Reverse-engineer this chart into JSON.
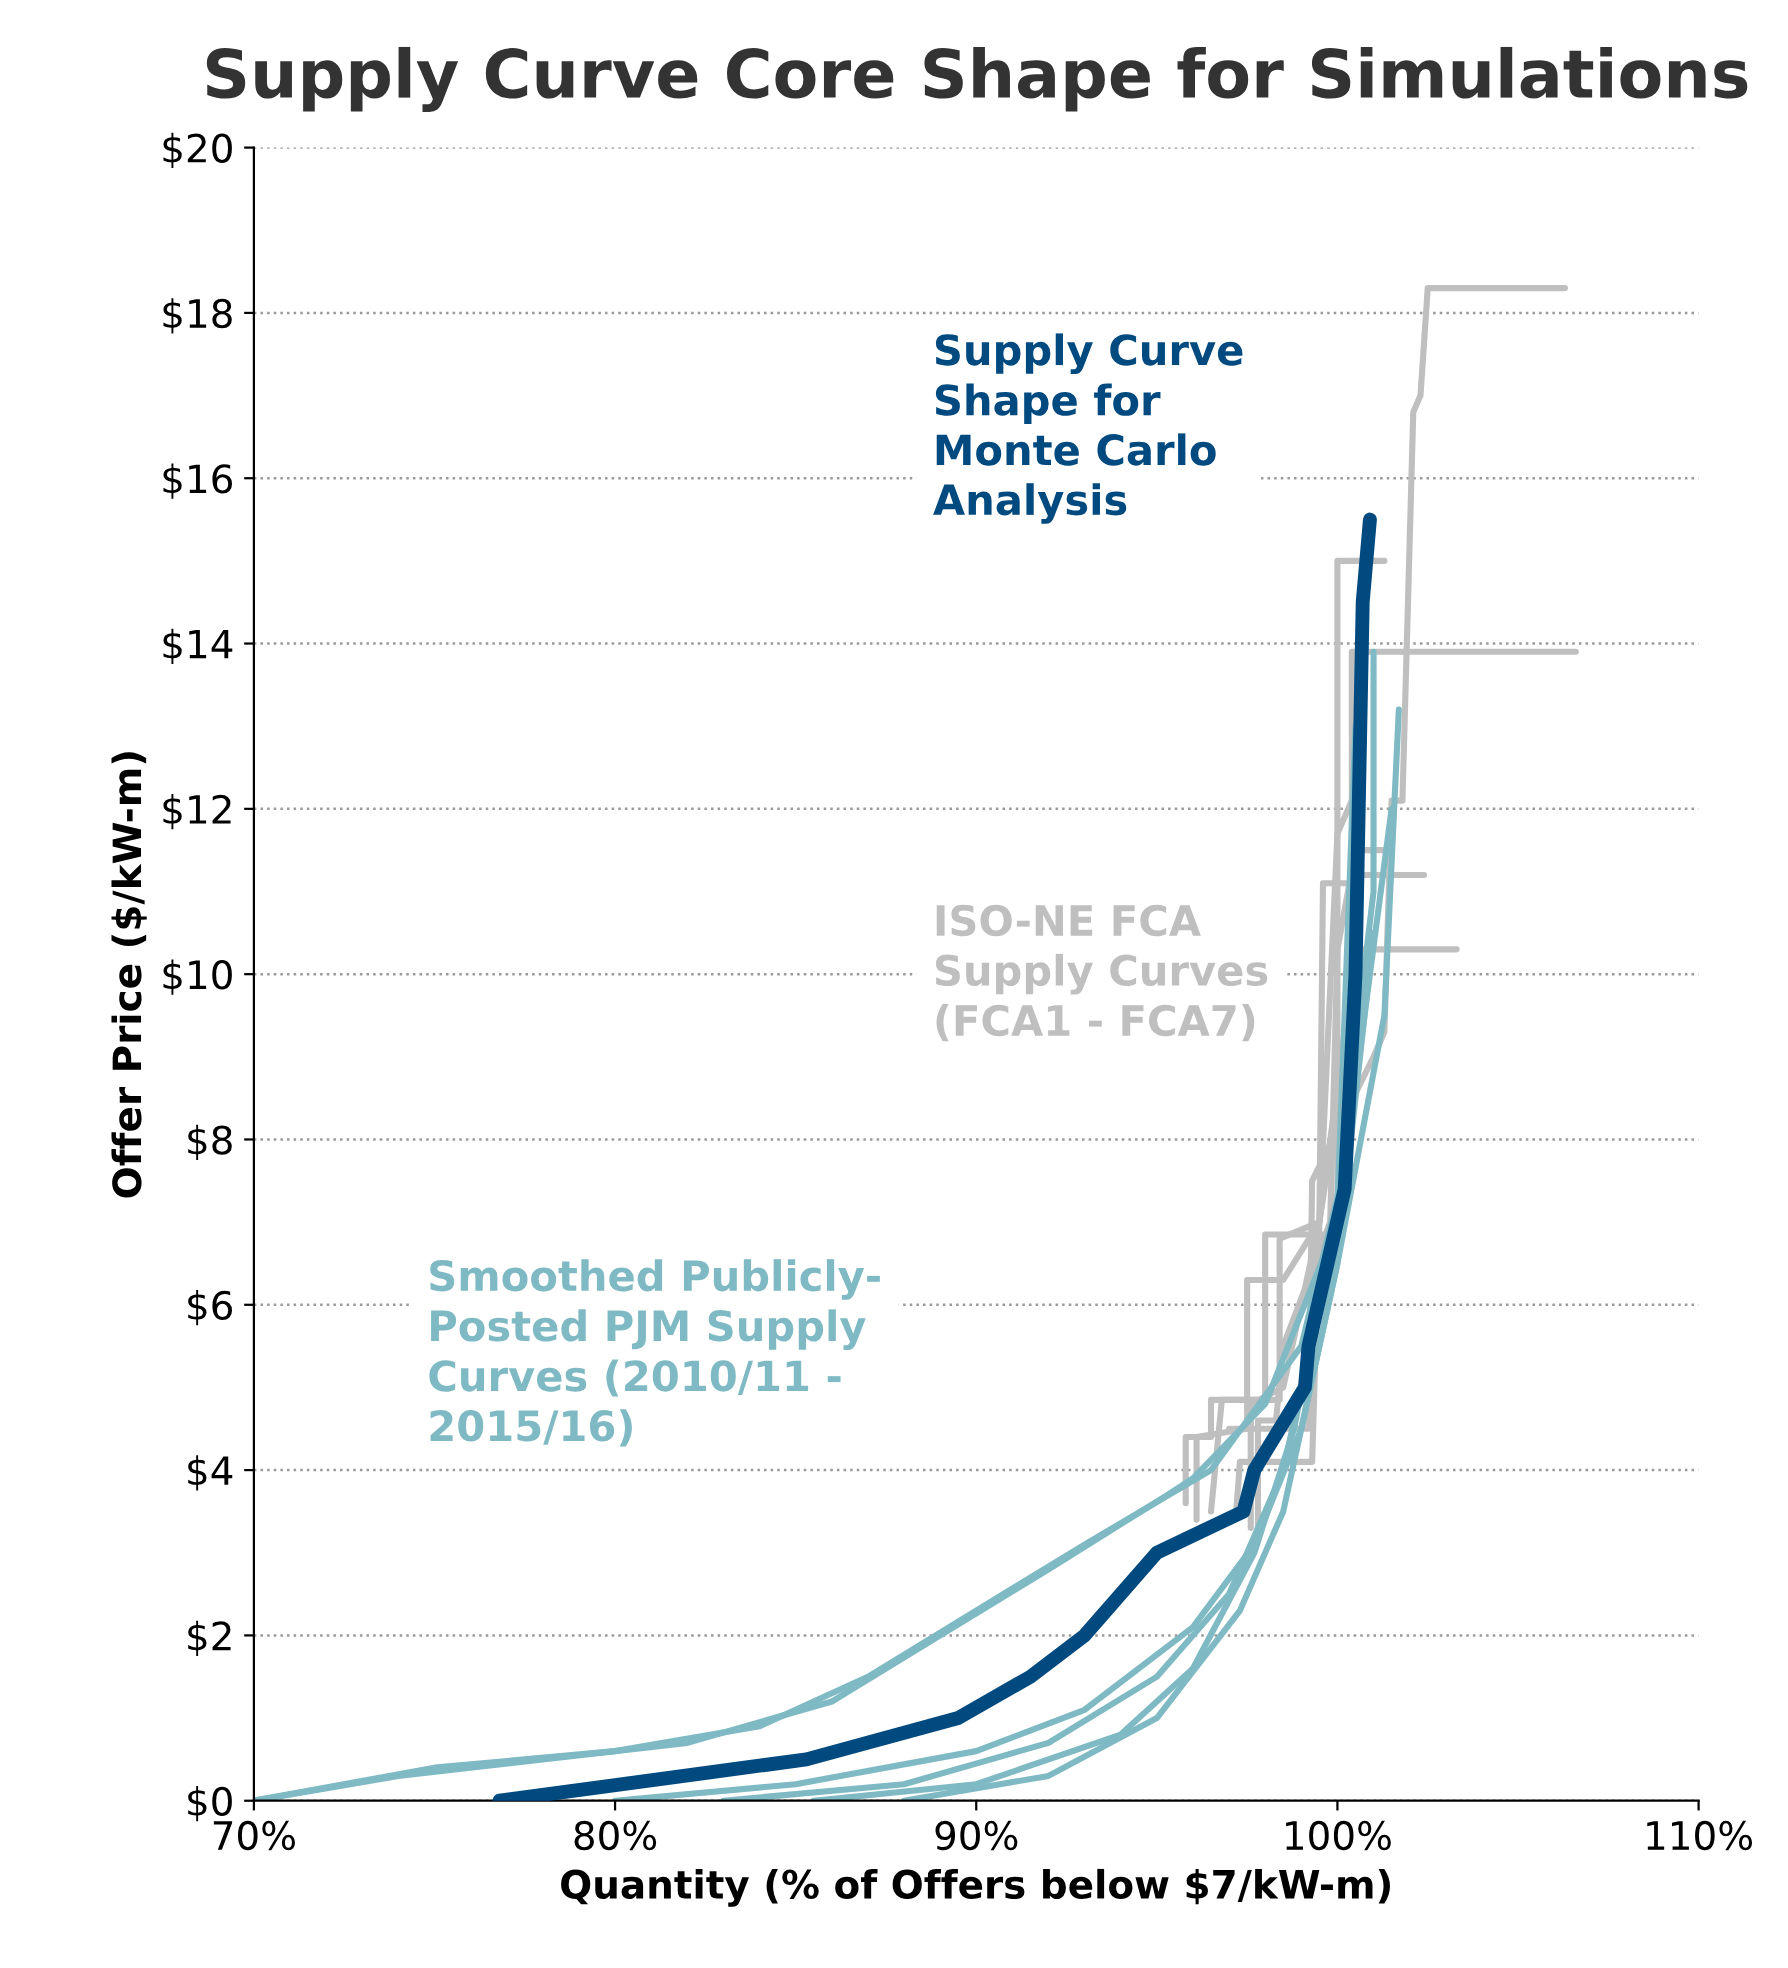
{
  "chart_data": {
    "type": "line",
    "title": "Supply Curve Core Shape for Simulations",
    "xlabel": "Quantity (% of Offers below $7/kW-m)",
    "ylabel": "Offer Price ($/kW-m)",
    "xlim": [
      70,
      110
    ],
    "xticks": [
      {
        "value": 70,
        "label": "70%"
      },
      {
        "value": 80,
        "label": "80%"
      },
      {
        "value": 90,
        "label": "90%"
      },
      {
        "value": 100,
        "label": "100%"
      },
      {
        "value": 110,
        "label": "110%"
      }
    ],
    "ylim": [
      0,
      20
    ],
    "yticks": [
      {
        "value": 0,
        "label": "$0"
      },
      {
        "value": 2,
        "label": "$2"
      },
      {
        "value": 4,
        "label": "$4"
      },
      {
        "value": 6,
        "label": "$6"
      },
      {
        "value": 8,
        "label": "$8"
      },
      {
        "value": 10,
        "label": "$10"
      },
      {
        "value": 12,
        "label": "$12"
      },
      {
        "value": 14,
        "label": "$14"
      },
      {
        "value": 16,
        "label": "$16"
      },
      {
        "value": 18,
        "label": "$18"
      },
      {
        "value": 20,
        "label": "$20"
      }
    ],
    "grid": "y",
    "legend": false,
    "marker": "none",
    "line_style": "solid",
    "series": [
      {
        "name": "ISO-NE FCA\nSupply Curves\n(FCA1 - FCA7)",
        "color": "#bfbfbf",
        "x": [
          95.8,
          95.8,
          96.5,
          96.5,
          98,
          98,
          100,
          100,
          101.3
        ],
        "values": [
          3.6,
          4.4,
          4.4,
          4.85,
          4.85,
          6.85,
          6.85,
          15,
          15
        ]
      },
      {
        "color": "#bfbfbf",
        "x": [
          96.1,
          96.1,
          97.5,
          97.5,
          98.5,
          99.5,
          99.6,
          100.4,
          100.4,
          106.6
        ],
        "values": [
          3.4,
          4.4,
          4.5,
          6.3,
          6.3,
          7,
          11.1,
          11.1,
          13.9,
          13.9
        ]
      },
      {
        "color": "#bfbfbf",
        "x": [
          97.8,
          97.8,
          98.3,
          98.5,
          99.8,
          100,
          100.5,
          101.5
        ],
        "values": [
          3.2,
          4.6,
          4.6,
          5.5,
          7,
          10.3,
          11.5,
          11.5
        ]
      },
      {
        "color": "#bfbfbf",
        "x": [
          96.5,
          96.8,
          98.4,
          98.4,
          99.5,
          100.5,
          103.3
        ],
        "values": [
          3.5,
          4.85,
          4.85,
          6.8,
          7,
          10.3,
          10.3
        ]
      },
      {
        "color": "#bfbfbf",
        "x": [
          97.2,
          97.3,
          99.3,
          99.5,
          100.2,
          100.5,
          102.4
        ],
        "values": [
          3.5,
          4.1,
          4.1,
          7,
          9,
          11.2,
          11.2
        ]
      },
      {
        "color": "#bfbfbf",
        "x": [
          97,
          99.2,
          99.3,
          101,
          101.3,
          101.5,
          101.8,
          102.1,
          102.3,
          102.5,
          106.3
        ],
        "values": [
          4.5,
          4.5,
          7.5,
          9,
          9.3,
          12.1,
          12.1,
          16.8,
          17,
          18.3,
          18.3
        ]
      },
      {
        "color": "#bfbfbf",
        "x": [
          97.6,
          97.6,
          98.5,
          99.5,
          100,
          100.5
        ],
        "values": [
          3.3,
          4.8,
          5,
          7,
          11.7,
          12.2
        ]
      },
      {
        "name": "Smoothed Publicly-\nPosted PJM Supply\nCurves (2010/11 -\n2015/16)",
        "color": "#7fbac4",
        "x": [
          70,
          74,
          78,
          82,
          86,
          89,
          92,
          95.3,
          96,
          98,
          100,
          100.5,
          100.8
        ],
        "values": [
          0,
          0.3,
          0.5,
          0.7,
          1.2,
          2,
          2.8,
          3.7,
          3.9,
          4.8,
          7,
          10,
          15.2
        ]
      },
      {
        "color": "#7fbac4",
        "x": [
          70,
          75,
          80,
          84,
          87,
          90,
          93,
          96.5,
          99,
          100,
          101,
          101
        ],
        "values": [
          0,
          0.4,
          0.6,
          0.9,
          1.5,
          2.3,
          3.1,
          4.0,
          5.5,
          7.3,
          11,
          13.9
        ]
      },
      {
        "color": "#7fbac4",
        "x": [
          80,
          85,
          90,
          93,
          96,
          97.7,
          99,
          100,
          101.3,
          101.7
        ],
        "values": [
          0,
          0.2,
          0.6,
          1.1,
          2.1,
          3.1,
          4.5,
          6.5,
          9.5,
          13.2
        ]
      },
      {
        "color": "#7fbac4",
        "x": [
          83,
          88,
          92,
          95,
          97,
          98.5,
          100,
          101.5
        ],
        "values": [
          0,
          0.2,
          0.7,
          1.5,
          2.5,
          4,
          7,
          12
        ]
      },
      {
        "color": "#7fbac4",
        "x": [
          85.5,
          90,
          94,
          96,
          97.7,
          98.8,
          100,
          100.5
        ],
        "values": [
          0,
          0.2,
          0.8,
          1.6,
          3.0,
          4.5,
          7.2,
          13
        ]
      },
      {
        "color": "#7fbac4",
        "x": [
          88,
          92,
          95,
          97.3,
          98.5,
          100,
          101
        ],
        "values": [
          0,
          0.3,
          1.0,
          2.3,
          3.5,
          6.5,
          10.5
        ]
      },
      {
        "name": "Supply Curve\nShape for\nMonte Carlo\nAnalysis",
        "color": "#004a80",
        "x": [
          76.8,
          85.3,
          89.5,
          91.5,
          93,
          95,
          97.4,
          97.7,
          99.1,
          99.2,
          100.2,
          100.5,
          100.7,
          100.9
        ],
        "values": [
          0,
          0.5,
          1.0,
          1.5,
          2,
          3,
          3.5,
          4,
          5,
          5.5,
          7.4,
          10,
          14.5,
          15.5
        ]
      }
    ]
  }
}
